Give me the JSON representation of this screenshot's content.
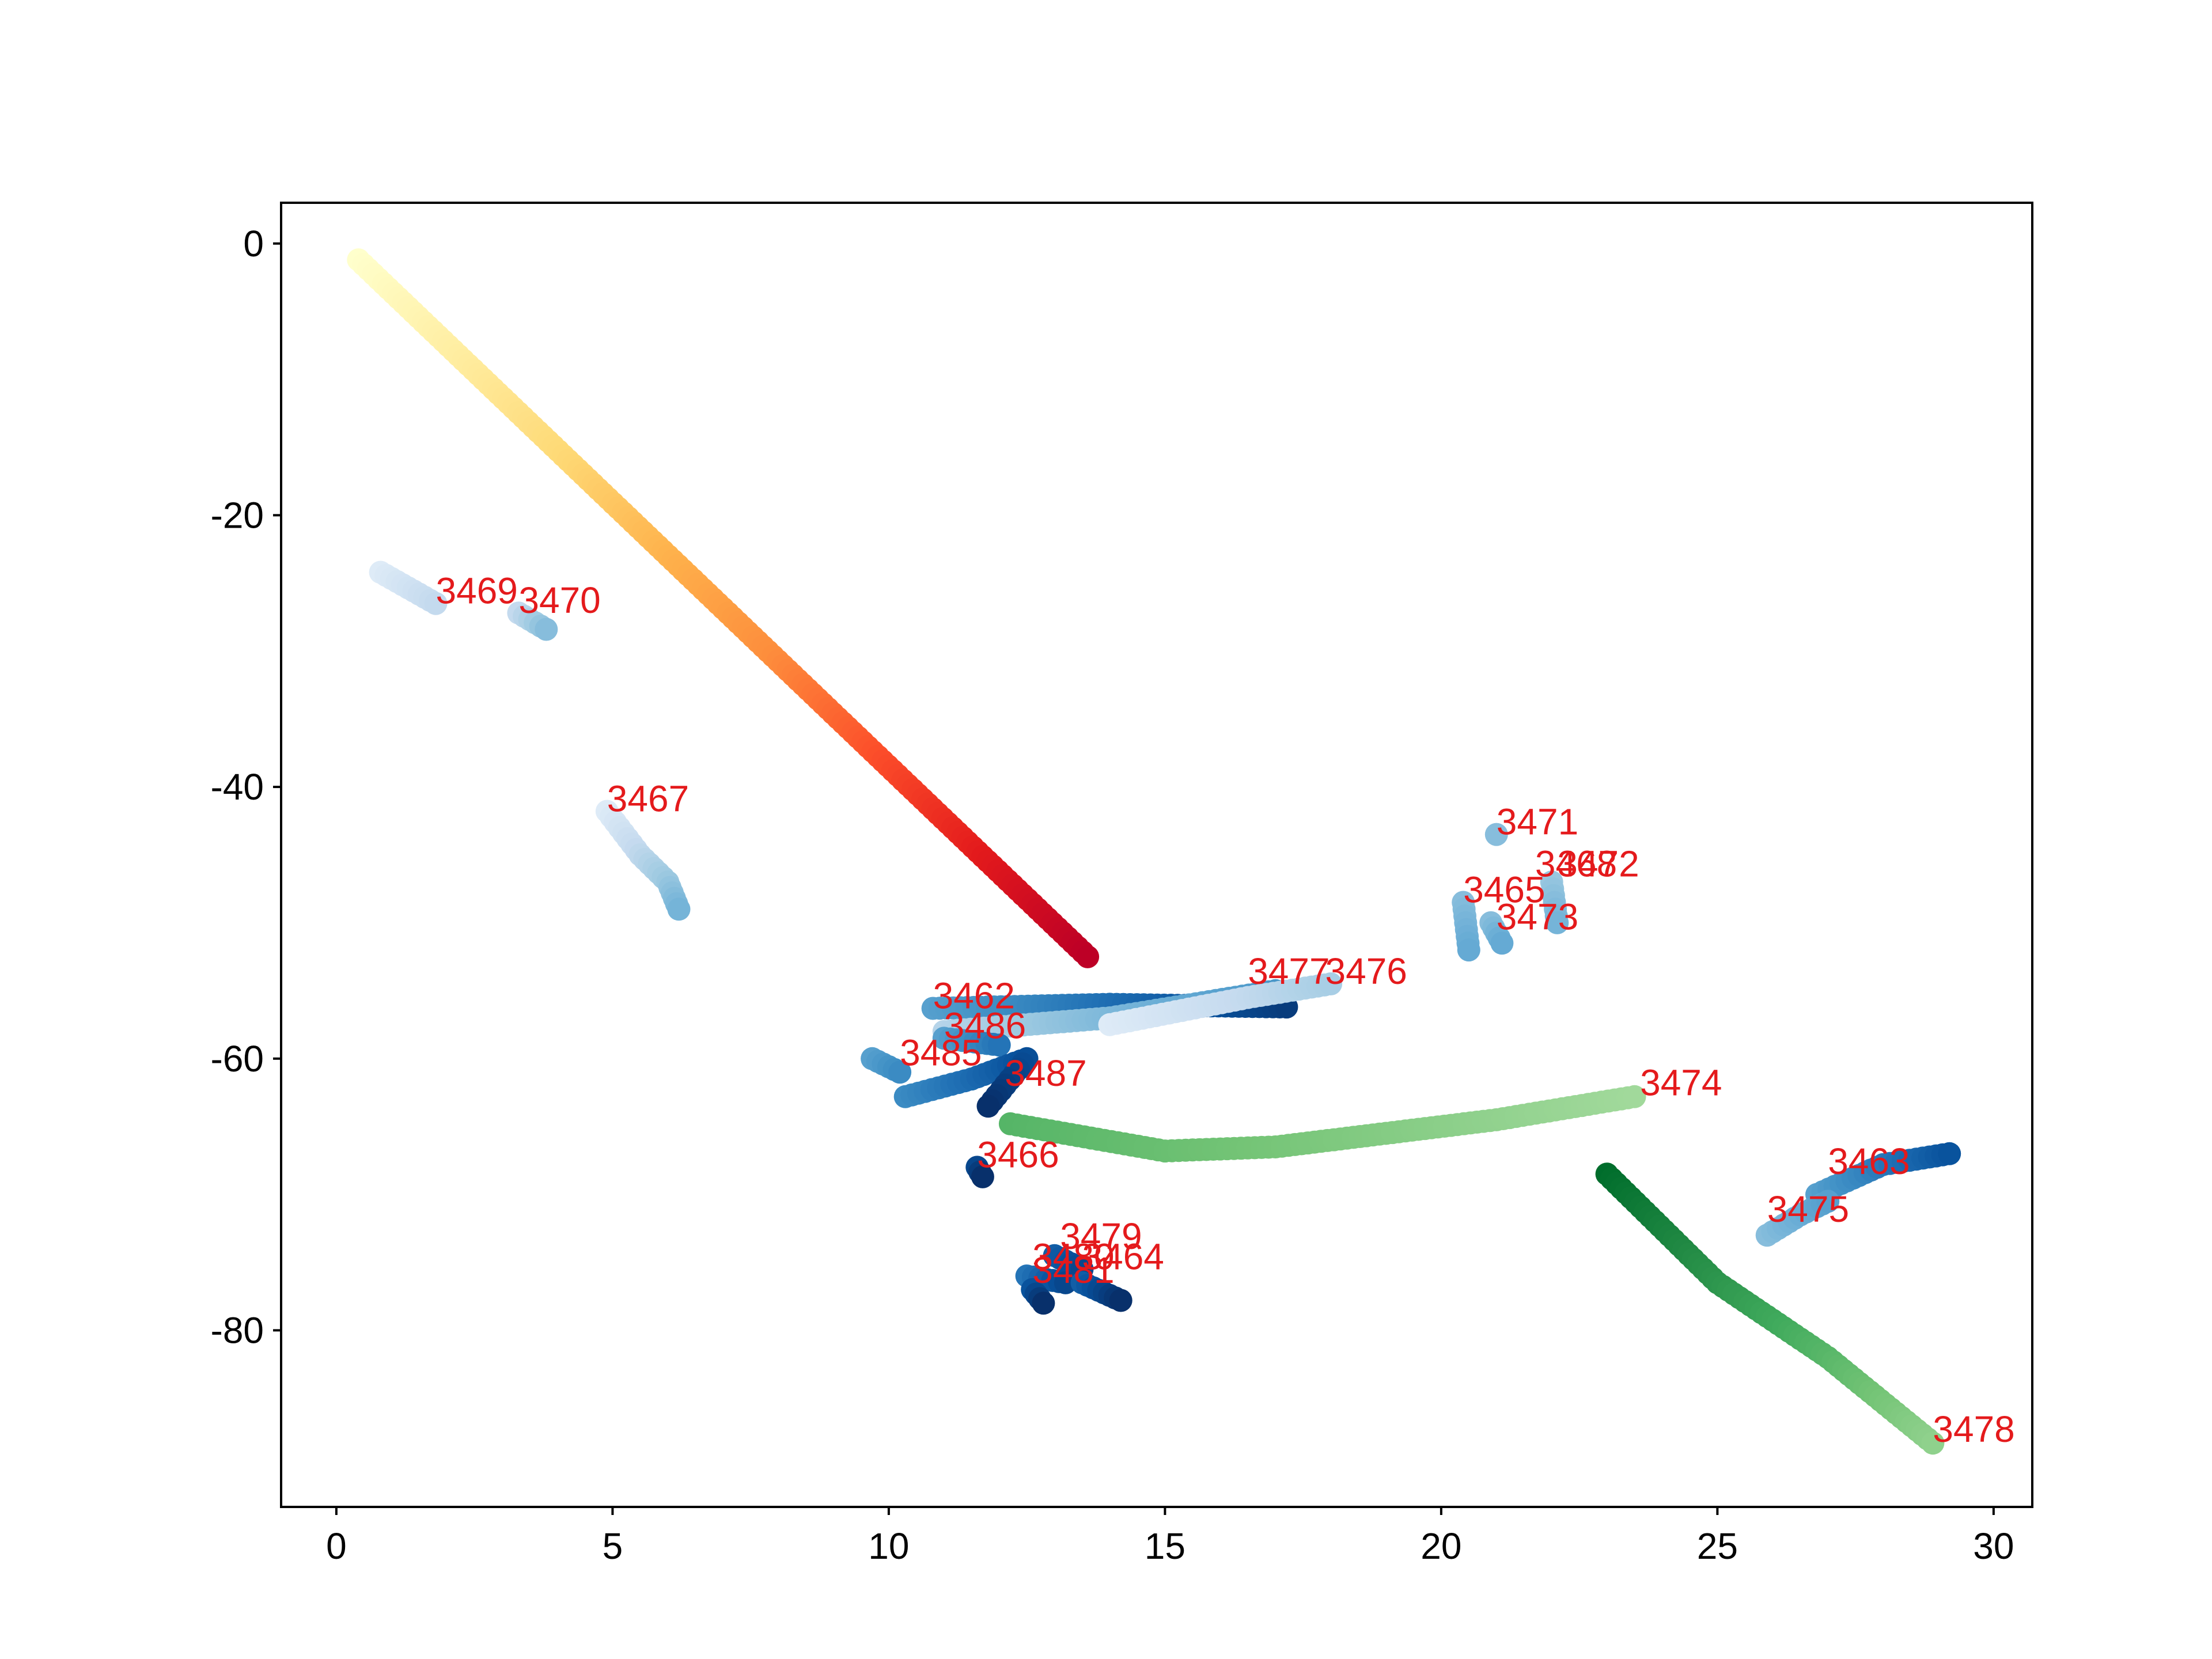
{
  "chart_data": {
    "type": "scatter",
    "title": "",
    "xlabel": "",
    "ylabel": "",
    "xlim": [
      -1,
      30.7
    ],
    "ylim": [
      -93,
      3
    ],
    "grid": false,
    "legend": "none",
    "xticks": [
      0,
      5,
      10,
      15,
      20,
      25,
      30
    ],
    "yticks": [
      0,
      -20,
      -40,
      -60,
      -80
    ],
    "label_color": "#e41a1c",
    "series": [
      {
        "label": "3468",
        "colormap": "YlOrRd",
        "points": [
          [
            0.4,
            -1.2
          ],
          [
            13.6,
            -52.5
          ]
        ]
      },
      {
        "label": "3469",
        "colormap": "Blues",
        "points": [
          [
            0.8,
            -24.2
          ],
          [
            1.8,
            -26.5
          ]
        ]
      },
      {
        "label": "3470",
        "colormap": "Blues",
        "points": [
          [
            3.3,
            -27.2
          ],
          [
            3.8,
            -28.4
          ]
        ]
      },
      {
        "label": "3467",
        "colormap": "Blues",
        "points": [
          [
            4.9,
            -41.8
          ],
          [
            5.5,
            -45.0
          ],
          [
            6.0,
            -47.0
          ],
          [
            6.2,
            -49.0
          ]
        ]
      },
      {
        "label": "3471",
        "colormap": "Blues",
        "points": [
          [
            21.0,
            -43.5
          ]
        ]
      },
      {
        "label": "3465",
        "colormap": "Blues",
        "points": [
          [
            20.4,
            -48.5
          ],
          [
            20.5,
            -52.0
          ]
        ]
      },
      {
        "label": "3472",
        "colormap": "Blues",
        "points": [
          [
            22.0,
            -47.0
          ],
          [
            22.1,
            -50.0
          ]
        ]
      },
      {
        "label": "3473",
        "colormap": "Blues",
        "points": [
          [
            20.9,
            -50.0
          ],
          [
            21.1,
            -51.5
          ]
        ]
      },
      {
        "label": "3462",
        "colormap": "Blues",
        "points": [
          [
            10.8,
            -56.3
          ],
          [
            14.0,
            -56.0
          ],
          [
            17.2,
            -56.2
          ]
        ]
      },
      {
        "label": "3477",
        "colormap": "Blues",
        "points": [
          [
            11.0,
            -58.0
          ],
          [
            14.0,
            -57.0
          ],
          [
            17.0,
            -55.0
          ]
        ]
      },
      {
        "label": "3476",
        "colormap": "Blues",
        "points": [
          [
            14.0,
            -57.5
          ],
          [
            16.5,
            -55.5
          ],
          [
            18.0,
            -54.5
          ]
        ]
      },
      {
        "label": "3486",
        "colormap": "Blues",
        "points": [
          [
            11.0,
            -58.5
          ],
          [
            12.0,
            -59.0
          ]
        ]
      },
      {
        "label": "3485",
        "colormap": "Blues",
        "points": [
          [
            9.7,
            -60.0
          ],
          [
            10.2,
            -61.0
          ]
        ]
      },
      {
        "label": "3487",
        "colormap": "Blues",
        "points": [
          [
            10.3,
            -62.8
          ],
          [
            11.5,
            -61.5
          ],
          [
            12.5,
            -60.0
          ],
          [
            11.8,
            -63.5
          ]
        ]
      },
      {
        "label": "3474",
        "colormap": "Greens",
        "points": [
          [
            12.2,
            -64.8
          ],
          [
            15.0,
            -66.8
          ],
          [
            17.0,
            -66.5
          ],
          [
            19.0,
            -65.5
          ],
          [
            21.0,
            -64.5
          ],
          [
            23.5,
            -62.8
          ]
        ]
      },
      {
        "label": "3466",
        "colormap": "Blues",
        "points": [
          [
            11.6,
            -68.0
          ],
          [
            11.7,
            -68.7
          ]
        ]
      },
      {
        "label": "3463",
        "colormap": "Blues",
        "points": [
          [
            26.8,
            -70.0
          ],
          [
            28.0,
            -67.8
          ],
          [
            29.2,
            -67.0
          ]
        ]
      },
      {
        "label": "3475",
        "colormap": "Blues",
        "points": [
          [
            25.9,
            -73.0
          ],
          [
            26.5,
            -71.5
          ],
          [
            27.0,
            -70.5
          ]
        ]
      },
      {
        "label": "3478",
        "colormap": "Greens",
        "points": [
          [
            23.0,
            -68.5
          ],
          [
            25.0,
            -76.5
          ],
          [
            27.0,
            -82.0
          ],
          [
            28.9,
            -88.3
          ]
        ]
      },
      {
        "label": "3479",
        "colormap": "Blues",
        "points": [
          [
            13.0,
            -74.5
          ],
          [
            13.5,
            -75.5
          ]
        ]
      },
      {
        "label": "3480",
        "colormap": "Blues",
        "points": [
          [
            12.5,
            -76.0
          ],
          [
            13.2,
            -76.5
          ]
        ]
      },
      {
        "label": "3464",
        "colormap": "Blues",
        "points": [
          [
            13.5,
            -76.5
          ],
          [
            14.2,
            -77.8
          ]
        ]
      },
      {
        "label": "3481",
        "colormap": "Blues",
        "points": [
          [
            12.6,
            -77.0
          ],
          [
            12.8,
            -78.0
          ]
        ]
      }
    ],
    "annotations": [
      {
        "text": "3469",
        "x": 1.8,
        "y": -26.5
      },
      {
        "text": "3470",
        "x": 3.3,
        "y": -27.2
      },
      {
        "text": "3467",
        "x": 4.9,
        "y": -41.8
      },
      {
        "text": "3471",
        "x": 21.0,
        "y": -43.5
      },
      {
        "text": "3468",
        "x": 21.7,
        "y": -46.6
      },
      {
        "text": "3472",
        "x": 22.1,
        "y": -46.6
      },
      {
        "text": "3465",
        "x": 20.4,
        "y": -48.5
      },
      {
        "text": "3473",
        "x": 21.0,
        "y": -50.5
      },
      {
        "text": "3477",
        "x": 16.5,
        "y": -54.5
      },
      {
        "text": "3476",
        "x": 17.9,
        "y": -54.5
      },
      {
        "text": "3462",
        "x": 10.8,
        "y": -56.3
      },
      {
        "text": "3486",
        "x": 11.0,
        "y": -58.5
      },
      {
        "text": "3485",
        "x": 10.2,
        "y": -60.5
      },
      {
        "text": "3487",
        "x": 12.1,
        "y": -62.0
      },
      {
        "text": "3474",
        "x": 23.6,
        "y": -62.7
      },
      {
        "text": "3466",
        "x": 11.6,
        "y": -68.0
      },
      {
        "text": "3463",
        "x": 27.0,
        "y": -68.5
      },
      {
        "text": "3475",
        "x": 25.9,
        "y": -72.0
      },
      {
        "text": "3479",
        "x": 13.1,
        "y": -74.0
      },
      {
        "text": "3480",
        "x": 12.6,
        "y": -75.5
      },
      {
        "text": "3464",
        "x": 13.5,
        "y": -75.5
      },
      {
        "text": "3481",
        "x": 12.6,
        "y": -76.5
      },
      {
        "text": "3478",
        "x": 28.9,
        "y": -88.2
      }
    ]
  }
}
